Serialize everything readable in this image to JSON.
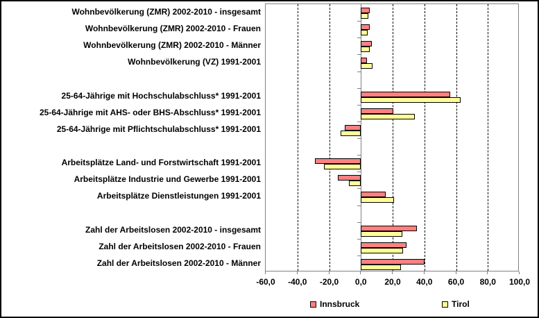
{
  "chart_data": {
    "type": "bar",
    "orientation": "horizontal",
    "title": "",
    "xlabel": "",
    "ylabel": "",
    "xlim": [
      -60,
      100
    ],
    "x_ticks": [
      -60,
      -40,
      -20,
      0,
      20,
      40,
      60,
      80,
      100
    ],
    "x_tick_labels": [
      "-60,0",
      "-40,0",
      "-20,0",
      "0,0",
      "20,0",
      "40,0",
      "60,0",
      "80,0",
      "100,0"
    ],
    "grid": "vertical-dashed",
    "legend_position": "bottom",
    "categories": [
      "Wohnbevölkerung (ZMR) 2002-2010 - insgesamt",
      "Wohnbevölkerung (ZMR) 2002-2010 - Frauen",
      "Wohnbevölkerung (ZMR) 2002-2010 - Männer",
      "Wohnbevölkerung (VZ) 1991-2001",
      "25-64-Jährige mit Hochschulabschluss* 1991-2001",
      "25-64-Jährige mit AHS- oder BHS-Abschluss* 1991-2001",
      "25-64-Jährige mit Pflichtschulabschluss* 1991-2001",
      "Arbeitsplätze Land- und Forstwirtschaft 1991-2001",
      "Arbeitsplätze Industrie und Gewerbe 1991-2001",
      "Arbeitsplätze Dienstleistungen 1991-2001",
      "Zahl der Arbeitslosen 2002-2010 - insgesamt",
      "Zahl der Arbeitslosen 2002-2010 - Frauen",
      "Zahl der Arbeitslosen 2002-2010 - Männer"
    ],
    "groups": [
      [
        0,
        1,
        2,
        3
      ],
      [
        4,
        5,
        6
      ],
      [
        7,
        8,
        9
      ],
      [
        10,
        11,
        12
      ]
    ],
    "series": [
      {
        "name": "Innsbruck",
        "color": "#FF8080",
        "values": [
          5.4,
          5.6,
          7.0,
          4.0,
          56.4,
          20.3,
          -10.0,
          -29.0,
          -14.4,
          15.5,
          35.3,
          28.9,
          40.3
        ]
      },
      {
        "name": "Tirol",
        "color": "#FFFF99",
        "values": [
          4.8,
          4.3,
          5.7,
          7.5,
          63.0,
          34.2,
          -12.7,
          -23.3,
          -7.4,
          21.0,
          26.1,
          26.4,
          25.1
        ]
      }
    ]
  },
  "colors": {
    "plot_border": "#808080",
    "axis_line": "#808080",
    "gridline": "#000000",
    "bar_border": "#000000",
    "background": "#ffffff"
  }
}
